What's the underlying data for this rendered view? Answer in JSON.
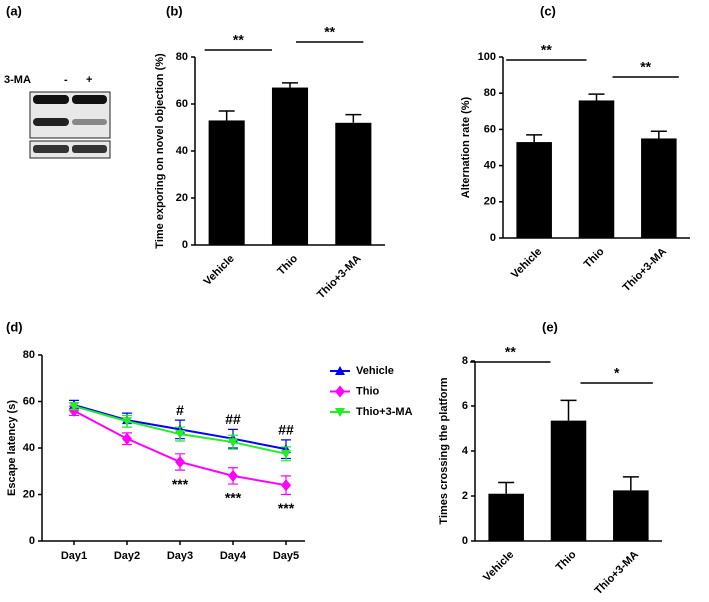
{
  "panel_a": {
    "panel": "(a)",
    "treatment": "3-MA",
    "lanes": [
      "-",
      "+"
    ]
  },
  "chart_data": [
    {
      "type": "bar",
      "panel": "(b)",
      "ylabel": "Time exporing on novel objection (%)",
      "categories": [
        "Vehicle",
        "Thio",
        "Thio+3-MA"
      ],
      "values": [
        53,
        67,
        52
      ],
      "errors": [
        4,
        2,
        3.5
      ],
      "color": "#000000",
      "ylim": [
        0,
        80
      ],
      "yticks": [
        0,
        20,
        40,
        60,
        80
      ],
      "annotations": [
        "**",
        "**"
      ]
    },
    {
      "type": "bar",
      "panel": "(c)",
      "ylabel": "Alternation rate (%)",
      "categories": [
        "Vehicle",
        "Thio",
        "Thio+3-MA"
      ],
      "values": [
        53,
        76,
        55
      ],
      "errors": [
        4,
        3.5,
        4
      ],
      "color": "#000000",
      "ylim": [
        0,
        100
      ],
      "yticks": [
        0,
        20,
        40,
        60,
        80,
        100
      ],
      "annotations": [
        "**",
        "**"
      ]
    },
    {
      "type": "line",
      "panel": "(d)",
      "ylabel": "Escape latency (s)",
      "categories": [
        "Day1",
        "Day2",
        "Day3",
        "Day4",
        "Day5"
      ],
      "series": [
        {
          "name": "Vehicle",
          "color": "#0000ff",
          "marker": "triangle",
          "values": [
            58.5,
            52,
            48,
            44,
            39.5
          ],
          "errors": [
            2,
            3,
            4,
            4,
            4
          ]
        },
        {
          "name": "Thio",
          "color": "#ff00ff",
          "marker": "diamond",
          "values": [
            56,
            44,
            34,
            28,
            24
          ],
          "errors": [
            2,
            2.5,
            3.5,
            3.5,
            4
          ]
        },
        {
          "name": "Thio+3-MA",
          "color": "#22ee22",
          "marker": "triangle-down",
          "values": [
            58,
            51.5,
            46,
            42.5,
            37.5
          ],
          "errors": [
            1.5,
            2.5,
            3,
            3,
            3
          ]
        }
      ],
      "ylim": [
        0,
        80
      ],
      "yticks": [
        0,
        20,
        40,
        60,
        80
      ],
      "legend": "right",
      "annotations": [
        "#",
        "##",
        "##",
        "***",
        "***",
        "***"
      ]
    },
    {
      "type": "bar",
      "panel": "(e)",
      "ylabel": "Times crossing the platform",
      "categories": [
        "Vehicle",
        "Thio",
        "Thio+3-MA"
      ],
      "values": [
        2.1,
        5.35,
        2.25
      ],
      "errors": [
        0.5,
        0.9,
        0.6
      ],
      "color": "#000000",
      "ylim": [
        0,
        8
      ],
      "yticks": [
        0,
        2,
        4,
        6,
        8
      ],
      "annotations": [
        "**",
        "*"
      ]
    }
  ]
}
